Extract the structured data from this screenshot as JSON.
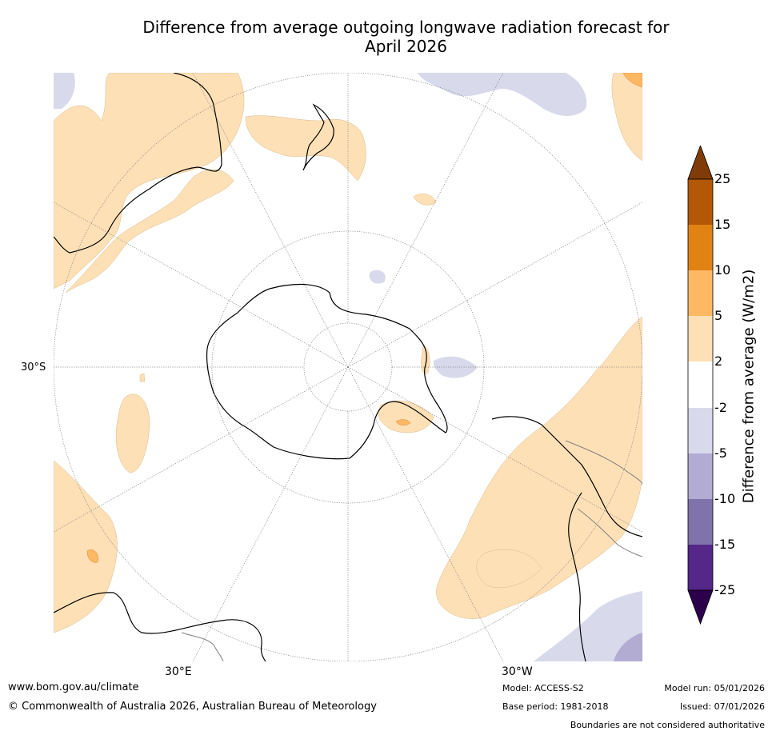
{
  "title_line1": "Difference from average outgoing longwave radiation forecast for",
  "title_line2": "April 2026",
  "map": {
    "lat_label": "30°S",
    "lon_labels": [
      "30°E",
      "30°W"
    ]
  },
  "colorbar": {
    "title": "Difference from average (W/m2)",
    "levels": [
      "25",
      "15",
      "10",
      "5",
      "2",
      "-2",
      "-5",
      "-10",
      "-15",
      "-25"
    ],
    "colors": {
      "gt25": "#7f3b08",
      "15_25": "#b35806",
      "10_15": "#e08214",
      "5_10": "#fdb863",
      "2_5": "#fee0b6",
      "neutral": "#ffffff",
      "m5_m2": "#d8daeb",
      "m10_m5": "#b2abd2",
      "m15_m10": "#8073ac",
      "m25_m15": "#542788",
      "lt_m25": "#2d004b"
    }
  },
  "footer": {
    "website": "www.bom.gov.au/climate",
    "copyright": "© Commonwealth of Australia 2026, Australian Bureau of Meteorology",
    "model": "Model: ACCESS-S2",
    "base_period": "Base period: 1981-2018",
    "model_run": "Model run: 05/01/2026",
    "issued": "Issued: 07/01/2026",
    "disclaimer": "Boundaries are not considered authoritative"
  }
}
